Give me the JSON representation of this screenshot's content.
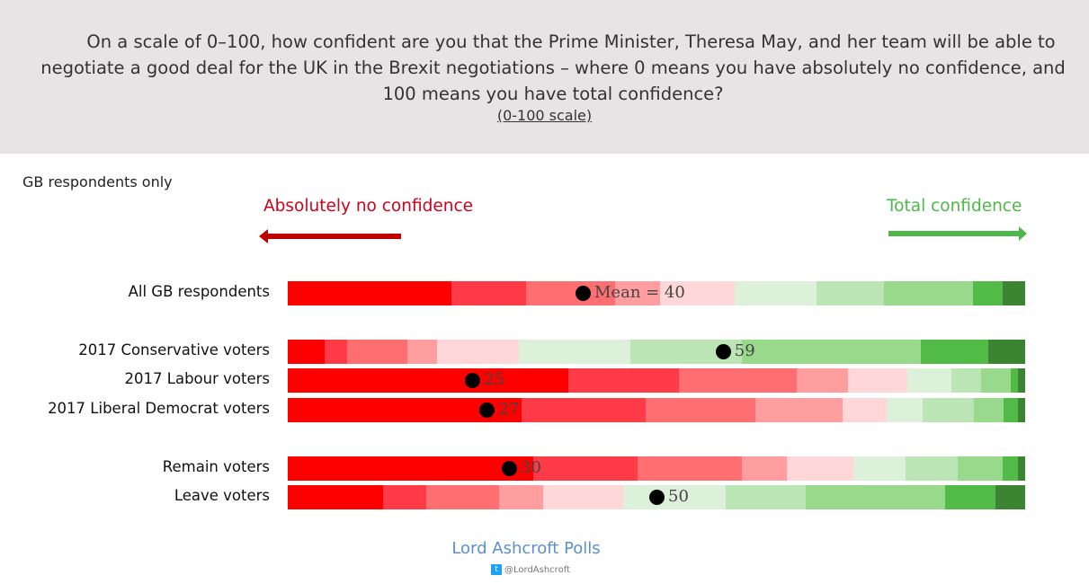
{
  "header": {
    "question_line1": "On a scale of 0–100, how confident are you that the Prime Minister, Theresa May, and her team will be able to",
    "question_line2": "negotiate a good deal for the UK in the Brexit negotiations – where 0 means you have absolutely no confidence, and",
    "question_line3": "100 means you have total confidence?",
    "scale_note": "(0-100 scale)"
  },
  "note": "GB respondents only",
  "footer": {
    "brand": "Lord Ashcroft Polls",
    "twitter": "@LordAshcroft"
  },
  "chart_data": {
    "type": "stacked-bar",
    "left_label": "Absolutely no confidence",
    "right_label": "Total confidence",
    "colors": [
      "#ff0000",
      "#ff3b47",
      "#ff6f72",
      "#ff9d9f",
      "#ffd7d8",
      "#dcf0da",
      "#bce5b6",
      "#98d98c",
      "#52bb47",
      "#3a8432"
    ],
    "xlim": [
      0,
      100
    ],
    "rows": [
      {
        "label": "All GB respondents",
        "values": [
          22,
          10,
          12,
          6,
          10,
          11,
          9,
          12,
          4,
          3
        ],
        "mean": 40,
        "mean_label": "Mean = 40"
      },
      {
        "label": "2017 Conservative voters",
        "values": [
          5,
          3,
          8,
          4,
          11,
          15,
          15,
          24,
          9,
          5
        ],
        "mean": 59,
        "mean_label": "59"
      },
      {
        "label": "2017 Labour voters",
        "values": [
          38,
          15,
          16,
          7,
          8,
          6,
          4,
          4,
          1,
          1
        ],
        "mean": 25,
        "mean_label": "25"
      },
      {
        "label": "2017 Liberal Democrat voters",
        "values": [
          32,
          17,
          15,
          12,
          6,
          5,
          7,
          4,
          2,
          1
        ],
        "mean": 27,
        "mean_label": "27"
      },
      {
        "label": "Remain voters",
        "values": [
          33,
          14,
          14,
          6,
          9,
          7,
          7,
          6,
          2,
          1
        ],
        "mean": 30,
        "mean_label": "30"
      },
      {
        "label": "Leave voters",
        "values": [
          13,
          6,
          10,
          6,
          11,
          14,
          11,
          19,
          7,
          4
        ],
        "mean": 50,
        "mean_label": "50"
      }
    ]
  }
}
